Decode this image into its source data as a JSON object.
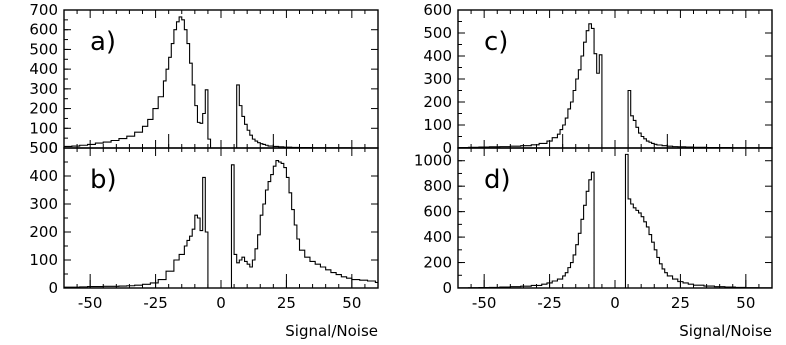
{
  "chart_data": [
    {
      "type": "histogram",
      "label": "a)",
      "xlabel": "",
      "ylabel": "",
      "xlim": [
        -60,
        60
      ],
      "ylim": [
        0,
        700
      ],
      "yticks": [
        0,
        100,
        200,
        300,
        400,
        500,
        600,
        700
      ],
      "xticks": [],
      "x": [
        -60,
        -57,
        -54,
        -51,
        -48,
        -45,
        -42,
        -39,
        -36,
        -33,
        -30,
        -28,
        -26,
        -24,
        -22,
        -21,
        -20,
        -19,
        -18,
        -17,
        -16,
        -15,
        -14,
        -13,
        -12,
        -11,
        -10,
        -9,
        -8,
        -7,
        -6,
        -5,
        -4,
        -3,
        -2,
        -1,
        0,
        1,
        2,
        3,
        4,
        5,
        6,
        7,
        8,
        9,
        10,
        11,
        12,
        13,
        14,
        15,
        16,
        17,
        18,
        20,
        22,
        24,
        27,
        30,
        35,
        40,
        50,
        60
      ],
      "values": [
        8,
        10,
        14,
        18,
        25,
        30,
        38,
        48,
        60,
        80,
        110,
        145,
        200,
        260,
        340,
        400,
        460,
        530,
        600,
        640,
        665,
        650,
        600,
        530,
        430,
        320,
        215,
        130,
        125,
        175,
        295,
        45,
        0,
        0,
        0,
        0,
        0,
        0,
        0,
        0,
        0,
        0,
        320,
        215,
        160,
        120,
        90,
        65,
        45,
        35,
        27,
        22,
        18,
        14,
        10,
        8,
        6,
        4,
        3,
        2,
        1,
        1,
        0,
        0
      ],
      "markers": [
        -20,
        20
      ]
    },
    {
      "type": "histogram",
      "label": "b)",
      "xlabel": "Signal/Noise",
      "ylabel": "",
      "xlim": [
        -60,
        60
      ],
      "ylim": [
        0,
        500
      ],
      "yticks": [
        0,
        100,
        200,
        300,
        400,
        500
      ],
      "xticks": [
        -50,
        -25,
        0,
        25,
        50
      ],
      "x": [
        -60,
        -57,
        -54,
        -51,
        -48,
        -45,
        -42,
        -39,
        -36,
        -33,
        -30,
        -27,
        -24,
        -21,
        -18,
        -16,
        -14,
        -13,
        -12,
        -11,
        -10,
        -9,
        -8,
        -7,
        -6,
        -5,
        -4,
        -3,
        -2,
        -1,
        0,
        1,
        2,
        3,
        4,
        5,
        6,
        7,
        8,
        9,
        10,
        11,
        12,
        13,
        14,
        15,
        16,
        17,
        18,
        19,
        20,
        21,
        22,
        23,
        24,
        25,
        26,
        27,
        28,
        29,
        30,
        32,
        34,
        36,
        38,
        40,
        42,
        44,
        46,
        48,
        50,
        53,
        56,
        59,
        60
      ],
      "values": [
        3,
        3,
        4,
        5,
        5,
        6,
        6,
        7,
        8,
        10,
        13,
        18,
        30,
        60,
        100,
        120,
        150,
        170,
        185,
        210,
        260,
        250,
        205,
        395,
        200,
        0,
        0,
        0,
        0,
        0,
        0,
        0,
        0,
        0,
        440,
        120,
        90,
        100,
        110,
        95,
        85,
        75,
        100,
        140,
        190,
        260,
        300,
        350,
        380,
        405,
        435,
        455,
        450,
        445,
        430,
        395,
        340,
        280,
        225,
        175,
        135,
        110,
        95,
        85,
        75,
        65,
        55,
        48,
        40,
        35,
        30,
        28,
        25,
        20,
        20
      ],
      "markers": [
        -50,
        -25,
        25,
        50
      ]
    },
    {
      "type": "histogram",
      "label": "c)",
      "xlabel": "",
      "ylabel": "",
      "xlim": [
        -60,
        60
      ],
      "ylim": [
        0,
        600
      ],
      "yticks": [
        0,
        100,
        200,
        300,
        400,
        500,
        600
      ],
      "xticks": [],
      "x": [
        -60,
        -56,
        -52,
        -48,
        -44,
        -40,
        -36,
        -32,
        -29,
        -26,
        -24,
        -22,
        -21,
        -20,
        -19,
        -18,
        -17,
        -16,
        -15,
        -14,
        -13,
        -12,
        -11,
        -10,
        -9,
        -8,
        -7,
        -6,
        -5,
        -4,
        -3,
        -2,
        -1,
        0,
        1,
        2,
        3,
        4,
        5,
        6,
        7,
        8,
        9,
        10,
        11,
        12,
        13,
        14,
        15,
        16,
        18,
        20,
        22,
        24,
        27,
        30,
        35,
        40,
        45,
        50,
        55,
        60
      ],
      "values": [
        2,
        3,
        4,
        5,
        6,
        8,
        10,
        14,
        20,
        30,
        45,
        60,
        80,
        100,
        130,
        170,
        200,
        250,
        300,
        340,
        400,
        460,
        510,
        540,
        520,
        410,
        325,
        405,
        0,
        0,
        0,
        0,
        0,
        0,
        0,
        0,
        0,
        0,
        250,
        140,
        120,
        90,
        65,
        50,
        40,
        30,
        25,
        20,
        16,
        13,
        10,
        8,
        6,
        5,
        4,
        3,
        2,
        2,
        1,
        1,
        1,
        0
      ],
      "markers": [
        -20,
        20
      ]
    },
    {
      "type": "histogram",
      "label": "d)",
      "xlabel": "Signal/Noise",
      "ylabel": "",
      "xlim": [
        -60,
        60
      ],
      "ylim": [
        0,
        1100
      ],
      "yticks": [
        0,
        200,
        400,
        600,
        800,
        1000
      ],
      "xticks": [
        -50,
        -25,
        0,
        25,
        50
      ],
      "x": [
        -60,
        -56,
        -52,
        -48,
        -44,
        -40,
        -36,
        -32,
        -28,
        -26,
        -24,
        -22,
        -20,
        -19,
        -18,
        -17,
        -16,
        -15,
        -14,
        -13,
        -12,
        -11,
        -10,
        -9,
        -8,
        -7,
        -6,
        -5,
        -4,
        -3,
        -2,
        -1,
        0,
        1,
        2,
        3,
        4,
        5,
        6,
        7,
        8,
        9,
        10,
        11,
        12,
        13,
        14,
        15,
        16,
        17,
        18,
        19,
        20,
        22,
        24,
        26,
        28,
        30,
        34,
        38,
        42,
        46,
        50,
        55,
        60
      ],
      "values": [
        2,
        3,
        4,
        5,
        7,
        10,
        14,
        20,
        30,
        40,
        55,
        70,
        95,
        120,
        160,
        200,
        260,
        340,
        430,
        540,
        650,
        760,
        850,
        910,
        0,
        0,
        0,
        0,
        0,
        0,
        0,
        0,
        0,
        0,
        0,
        0,
        1050,
        700,
        660,
        630,
        610,
        590,
        560,
        520,
        480,
        420,
        360,
        300,
        240,
        190,
        150,
        120,
        95,
        70,
        50,
        40,
        30,
        22,
        15,
        10,
        7,
        5,
        3,
        2,
        1
      ],
      "markers": [
        -50,
        -25,
        25,
        50
      ]
    }
  ]
}
